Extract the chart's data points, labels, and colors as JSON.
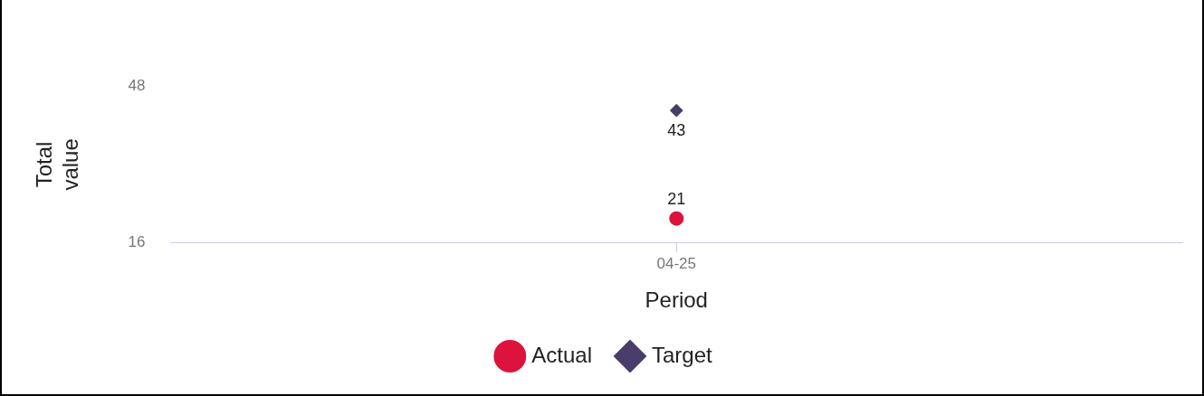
{
  "chart_data": {
    "type": "line",
    "xlabel": "Period",
    "ylabel": "Total value",
    "categories": [
      "04-25"
    ],
    "series": [
      {
        "name": "Actual",
        "color": "#dc143c",
        "marker": "circle",
        "values": [
          21
        ]
      },
      {
        "name": "Target",
        "color": "#483d6b",
        "marker": "diamond",
        "values": [
          43
        ]
      }
    ],
    "ylim": [
      16,
      48
    ],
    "yticks": [
      16,
      48
    ],
    "grid": false,
    "legend": "bottom",
    "data_labels": true
  }
}
